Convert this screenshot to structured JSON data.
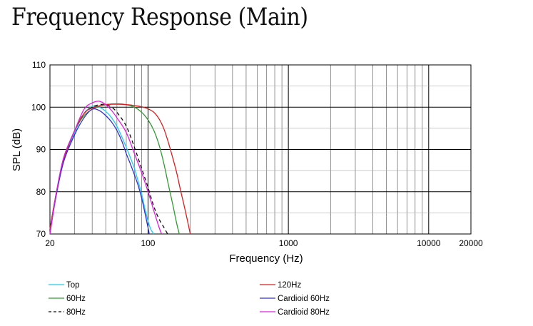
{
  "chart_data": {
    "type": "line",
    "title": "Frequency Response (Main)",
    "xlabel": "Frequency (Hz)",
    "ylabel": "SPL (dB)",
    "xscale": "log",
    "xlim": [
      20,
      20000
    ],
    "ylim": [
      70,
      110
    ],
    "xticks": [
      20,
      100,
      1000,
      10000,
      20000
    ],
    "xtick_labels": [
      "20",
      "100",
      "1000",
      "10000",
      "20000"
    ],
    "yticks": [
      70,
      80,
      90,
      100,
      110
    ],
    "ytick_labels": [
      "70",
      "80",
      "90",
      "100",
      "110"
    ],
    "grid": true,
    "legend_position": "bottom",
    "series": [
      {
        "name": "Top",
        "color": "#22ccee",
        "dash": "solid",
        "x": [
          20,
          22,
          25,
          30,
          35,
          40,
          45,
          50,
          55,
          60,
          65,
          70,
          75,
          80,
          85,
          90,
          95,
          100,
          105,
          110
        ],
        "y": [
          71,
          79,
          87.5,
          94,
          98.5,
          100.2,
          100,
          99,
          97.5,
          95.5,
          93,
          90.5,
          88,
          85.5,
          82.5,
          79.5,
          76,
          73,
          71,
          70
        ]
      },
      {
        "name": "60Hz",
        "color": "#339933",
        "dash": "solid",
        "x": [
          20,
          22,
          25,
          30,
          35,
          40,
          45,
          50,
          60,
          70,
          80,
          90,
          100,
          110,
          120,
          130,
          140,
          150,
          160,
          167
        ],
        "y": [
          71,
          79,
          87.5,
          94.5,
          98,
          99.5,
          100.2,
          100.6,
          100.8,
          100.6,
          100,
          98.8,
          97,
          94.5,
          91,
          86.5,
          81.5,
          77,
          72.5,
          70
        ]
      },
      {
        "name": "80Hz",
        "color": "#0a0a0a",
        "dash": "5,4",
        "x": [
          20,
          22,
          25,
          30,
          35,
          40,
          45,
          50,
          55,
          60,
          70,
          80,
          90,
          100,
          110,
          120,
          130,
          138
        ],
        "y": [
          71,
          79,
          87.5,
          94.5,
          98.5,
          100,
          100.6,
          100.6,
          100,
          98.8,
          95.5,
          90.5,
          85.5,
          81,
          76.5,
          73.5,
          71.5,
          70
        ]
      },
      {
        "name": "120Hz",
        "color": "#d42020",
        "dash": "solid",
        "x": [
          20,
          22,
          25,
          30,
          35,
          40,
          50,
          60,
          70,
          80,
          90,
          100,
          110,
          120,
          130,
          140,
          150,
          160,
          170,
          180,
          190,
          200
        ],
        "y": [
          71,
          79,
          87.5,
          94.5,
          98.5,
          99.8,
          100.6,
          100.7,
          100.6,
          100.4,
          100.1,
          99.6,
          98.8,
          97.2,
          94.8,
          91.5,
          88,
          84.5,
          80.5,
          77,
          73.5,
          70
        ]
      },
      {
        "name": "Cardioid 60Hz",
        "color": "#3333cc",
        "dash": "solid",
        "x": [
          20,
          22,
          25,
          30,
          35,
          40,
          45,
          50,
          55,
          60,
          65,
          70,
          75,
          80,
          85,
          90,
          95,
          100,
          102
        ],
        "y": [
          70,
          78.5,
          87,
          93.5,
          97.5,
          99.5,
          99.2,
          98,
          96.5,
          94.5,
          92,
          89,
          86.5,
          84,
          81.5,
          78.5,
          75,
          71.5,
          70
        ]
      },
      {
        "name": "Cardioid 80Hz",
        "color": "#e020e0",
        "dash": "solid",
        "x": [
          20,
          22,
          25,
          30,
          35,
          40,
          45,
          50,
          55,
          60,
          70,
          80,
          90,
          100,
          110,
          120,
          125
        ],
        "y": [
          70,
          79,
          88,
          94.5,
          99.5,
          101,
          101.4,
          100.6,
          99.2,
          97.5,
          94,
          89,
          84.5,
          80,
          75.5,
          71.5,
          70
        ]
      }
    ]
  }
}
